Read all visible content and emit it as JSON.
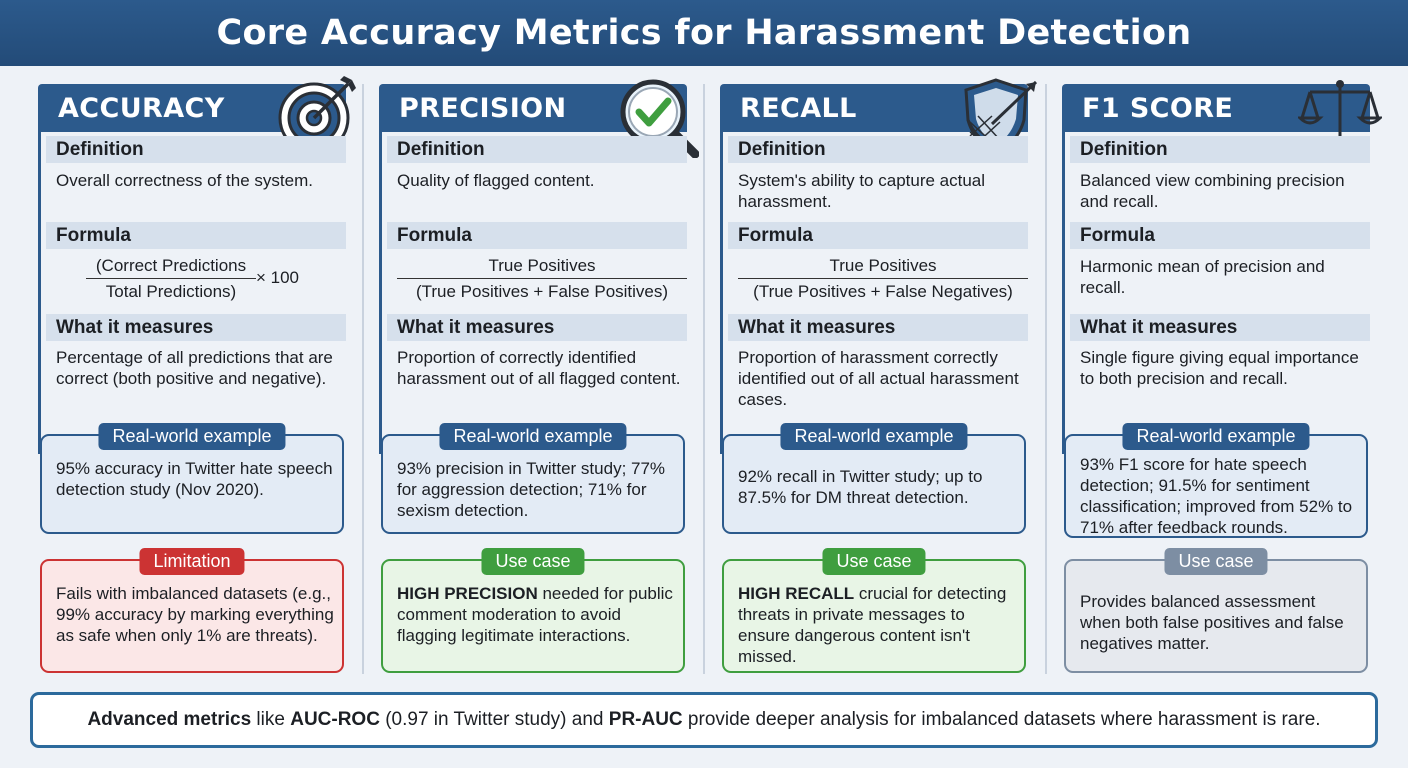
{
  "title": "Core Accuracy Metrics for Harassment Detection",
  "labels": {
    "definition": "Definition",
    "formula": "Formula",
    "measures": "What it measures",
    "example": "Real-world example"
  },
  "colors": {
    "header_blue": "#2c5a8c",
    "limitation_red": "#cc3333",
    "usecase_green": "#3f9e3f",
    "usecase_gray": "#7d8ea3"
  },
  "metrics": [
    {
      "name": "ACCURACY",
      "icon": "target-icon",
      "definition": "Overall correctness of the system.",
      "formula_num": "(Correct Predictions",
      "formula_den": "Total Predictions)",
      "formula_mult": "× 100",
      "measures": "Percentage of all predictions that are correct (both positive and negative).",
      "example": "95% accuracy in Twitter hate speech detection study (Nov 2020).",
      "case_label": "Limitation",
      "case_text": "Fails with imbalanced datasets (e.g., 99% accuracy by marking everything as safe when only 1% are threats)."
    },
    {
      "name": "PRECISION",
      "icon": "magnifier-check-icon",
      "definition": "Quality of flagged content.",
      "formula_num": "True Positives",
      "formula_den": "(True Positives + False Positives)",
      "measures": "Proportion of correctly identified harassment out of all flagged content.",
      "example": "93% precision in Twitter study; 77% for aggression detection; 71% for sexism detection.",
      "case_label": "Use case",
      "case_bold": "HIGH PRECISION",
      "case_text": " needed for public comment moderation to avoid flagging legitimate interactions."
    },
    {
      "name": "RECALL",
      "icon": "shield-net-icon",
      "definition": "System's ability to capture actual harassment.",
      "formula_num": "True Positives",
      "formula_den": "(True Positives + False Negatives)",
      "measures": "Proportion of harassment correctly identified out of all actual harassment cases.",
      "example": "92% recall in Twitter study; up to 87.5% for DM threat detection.",
      "case_label": "Use case",
      "case_bold": "HIGH RECALL",
      "case_text": " crucial for detecting threats in private messages to ensure dangerous content isn't missed."
    },
    {
      "name": "F1 SCORE",
      "icon": "balance-scale-icon",
      "definition": "Balanced view combining precision and recall.",
      "formula_text": "Harmonic mean of precision and recall.",
      "measures": "Single figure giving equal importance to both precision and recall.",
      "example": "93% F1 score for hate speech detection; 91.5% for sentiment classification; improved from 52% to 71% after feedback rounds.",
      "case_label": "Use case",
      "case_text": "Provides balanced assessment when both false positives and false negatives matter."
    }
  ],
  "bottom": {
    "b1": "Advanced metrics",
    "t1": " like ",
    "b2": "AUC-ROC",
    "t2": " (0.97 in Twitter study) and ",
    "b3": "PR-AUC",
    "t3": " provide deeper analysis for imbalanced datasets where harassment is rare."
  }
}
